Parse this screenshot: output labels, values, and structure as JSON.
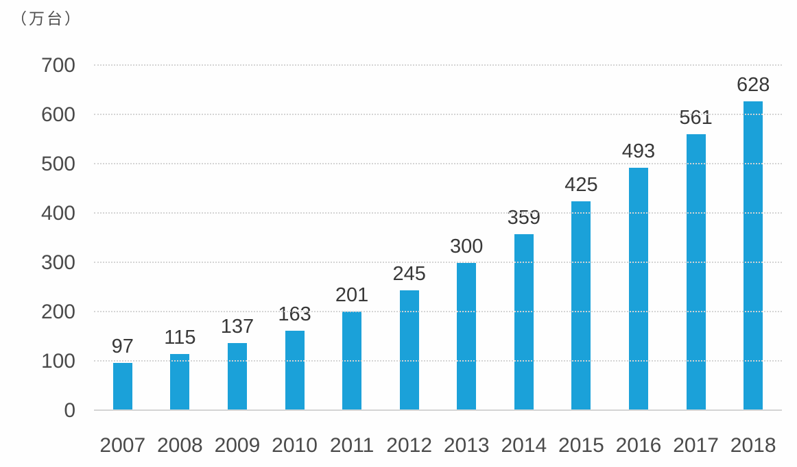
{
  "chart_data": {
    "type": "bar",
    "title": "",
    "ylabel": "（万台）",
    "unit": "万台",
    "xlabel": "",
    "categories": [
      "2007",
      "2008",
      "2009",
      "2010",
      "2011",
      "2012",
      "2013",
      "2014",
      "2015",
      "2016",
      "2017",
      "2018"
    ],
    "values": [
      97,
      115,
      137,
      163,
      201,
      245,
      300,
      359,
      425,
      493,
      561,
      628
    ],
    "ylim": [
      0,
      700
    ],
    "yticks": [
      0,
      100,
      200,
      300,
      400,
      500,
      600,
      700
    ],
    "grid": "horizontal-dotted",
    "legend": "none",
    "value_labels_shown": true,
    "colors": {
      "bar": "#1ba1d9",
      "grid": "#d4d4d4",
      "axis_text": "#4a4a4a",
      "value_text": "#383838",
      "background": "#fefefe"
    }
  }
}
